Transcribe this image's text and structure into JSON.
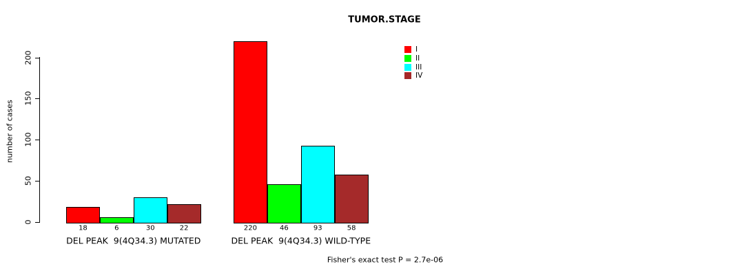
{
  "title": "TUMOR.STAGE",
  "footer": "Fisher's exact test P = 2.7e-06",
  "legend": [
    {
      "label": "I",
      "color": "#FF0000"
    },
    {
      "label": "II",
      "color": "#00FF00"
    },
    {
      "label": "III",
      "color": "#00FFFF"
    },
    {
      "label": "IV",
      "color": "#A52A2A"
    }
  ],
  "chart_data": {
    "type": "bar",
    "title": "TUMOR.STAGE",
    "xlabel": "",
    "ylabel": "number of cases",
    "categories": [
      "DEL PEAK  9(4Q34.3) MUTATED",
      "DEL PEAK  9(4Q34.3) WILD-TYPE"
    ],
    "series": [
      {
        "name": "I",
        "color": "#FF0000",
        "values": [
          18,
          220
        ]
      },
      {
        "name": "II",
        "color": "#00FF00",
        "values": [
          6,
          46
        ]
      },
      {
        "name": "III",
        "color": "#00FFFF",
        "values": [
          30,
          93
        ]
      },
      {
        "name": "IV",
        "color": "#A52A2A",
        "values": [
          22,
          58
        ]
      }
    ],
    "bar_value_labels": [
      [
        "18",
        "6",
        "30",
        "22"
      ],
      [
        "220",
        "46",
        "93",
        "58"
      ]
    ],
    "yticks": [
      0,
      50,
      100,
      150,
      200
    ],
    "ylim": [
      0,
      228
    ],
    "grid": false,
    "legend_position": "upper-right-inside",
    "annotation": "Fisher's exact test P = 2.7e-06"
  }
}
